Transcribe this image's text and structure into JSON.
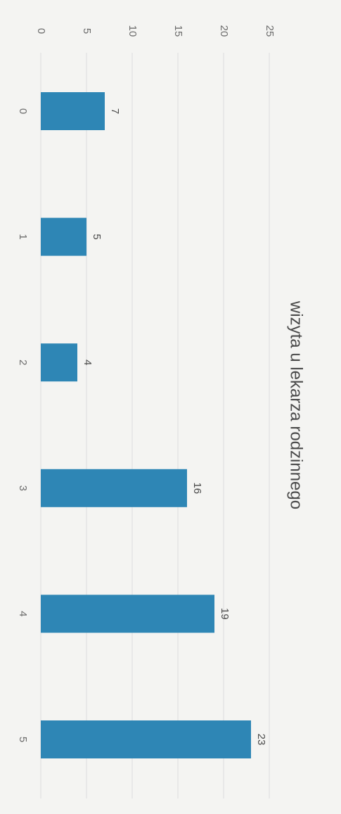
{
  "chart_data": {
    "type": "bar",
    "title": "wizyta u lekarza rodzinnego",
    "categories": [
      "0",
      "1",
      "2",
      "3",
      "4",
      "5"
    ],
    "values": [
      7,
      5,
      4,
      16,
      19,
      23
    ],
    "ylim": [
      0,
      25
    ],
    "yticks": [
      0,
      5,
      10,
      15,
      20,
      25
    ],
    "grid": true,
    "orientation": "image rotated 90 degrees clockwise",
    "colors": {
      "bar": "#2e86b5",
      "background": "#f4f4f2",
      "grid": "#dddddd",
      "text": "#4a4a4a"
    }
  }
}
